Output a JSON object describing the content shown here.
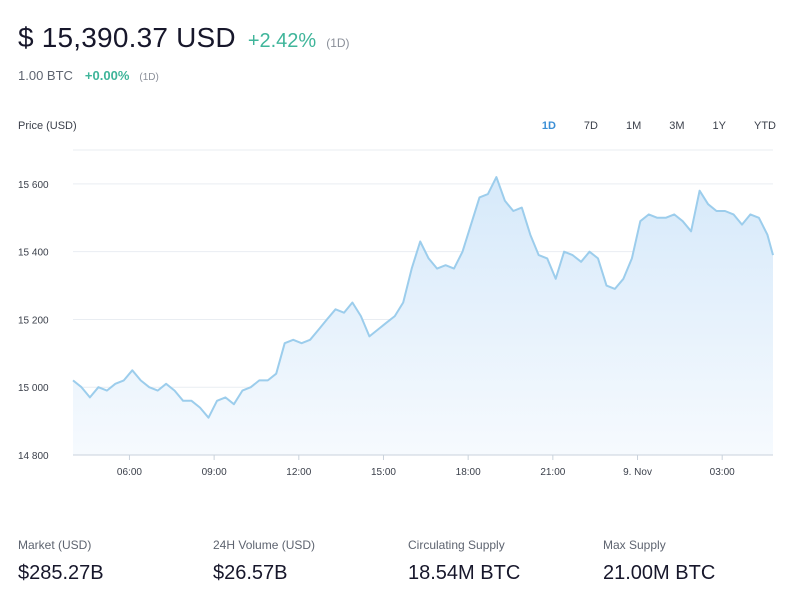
{
  "header": {
    "price": "$ 15,390.37 USD",
    "change": "+2.42%",
    "period": "(1D)",
    "btc_amount": "1.00 BTC",
    "btc_change": "+0.00%",
    "btc_period": "(1D)"
  },
  "ranges": [
    "1D",
    "7D",
    "1M",
    "3M",
    "1Y",
    "YTD"
  ],
  "active_range": "1D",
  "colors": {
    "line": "#9ccdec",
    "fill_top": "#d6e9fa",
    "fill_bottom": "#f6fafe",
    "accent": "#3b8fd6",
    "positive": "#3fb59a"
  },
  "chart_data": {
    "type": "area",
    "ylabel": "Price (USD)",
    "ylim": [
      14800,
      15700
    ],
    "y_ticks": [
      14800,
      15000,
      15200,
      15400,
      15600
    ],
    "y_tick_labels": [
      "14 800",
      "15 000",
      "15 200",
      "15 400",
      "15 600"
    ],
    "x_range": [
      4.0,
      28.8
    ],
    "x_ticks": [
      6,
      9,
      12,
      15,
      18,
      21,
      24,
      27
    ],
    "x_tick_labels": [
      "06:00",
      "09:00",
      "12:00",
      "15:00",
      "18:00",
      "21:00",
      "9. Nov",
      "03:00"
    ],
    "grid": true,
    "series": [
      {
        "x": [
          4.0,
          4.3,
          4.6,
          4.9,
          5.2,
          5.5,
          5.8,
          6.1,
          6.4,
          6.7,
          7.0,
          7.3,
          7.6,
          7.9,
          8.2,
          8.5,
          8.8,
          9.1,
          9.4,
          9.7,
          10.0,
          10.3,
          10.6,
          10.9,
          11.2,
          11.5,
          11.8,
          12.1,
          12.4,
          12.7,
          13.0,
          13.3,
          13.6,
          13.9,
          14.2,
          14.5,
          14.8,
          15.1,
          15.4,
          15.7,
          16.0,
          16.3,
          16.6,
          16.9,
          17.2,
          17.5,
          17.8,
          18.1,
          18.4,
          18.7,
          19.0,
          19.3,
          19.6,
          19.9,
          20.2,
          20.5,
          20.8,
          21.1,
          21.4,
          21.7,
          22.0,
          22.3,
          22.6,
          22.9,
          23.2,
          23.5,
          23.8,
          24.1,
          24.4,
          24.7,
          25.0,
          25.3,
          25.6,
          25.9,
          26.2,
          26.5,
          26.8,
          27.1,
          27.4,
          27.7,
          28.0,
          28.3,
          28.6,
          28.8
        ],
        "values": [
          15020,
          15000,
          14970,
          15000,
          14990,
          15010,
          15020,
          15050,
          15020,
          15000,
          14990,
          15010,
          14990,
          14960,
          14960,
          14940,
          14910,
          14960,
          14970,
          14950,
          14990,
          15000,
          15020,
          15020,
          15040,
          15130,
          15140,
          15130,
          15140,
          15170,
          15200,
          15230,
          15220,
          15250,
          15210,
          15150,
          15170,
          15190,
          15210,
          15250,
          15350,
          15430,
          15380,
          15350,
          15360,
          15350,
          15400,
          15480,
          15560,
          15570,
          15620,
          15550,
          15520,
          15530,
          15450,
          15390,
          15380,
          15320,
          15400,
          15390,
          15370,
          15400,
          15380,
          15300,
          15290,
          15320,
          15380,
          15490,
          15510,
          15500,
          15500,
          15510,
          15490,
          15460,
          15580,
          15540,
          15520,
          15520,
          15510,
          15480,
          15510,
          15500,
          15450,
          15390
        ]
      }
    ]
  },
  "stats": [
    {
      "label": "Market (USD)",
      "value": "$285.27B"
    },
    {
      "label": "24H Volume (USD)",
      "value": "$26.57B"
    },
    {
      "label": "Circulating Supply",
      "value": "18.54M BTC"
    },
    {
      "label": "Max Supply",
      "value": "21.00M BTC"
    }
  ]
}
